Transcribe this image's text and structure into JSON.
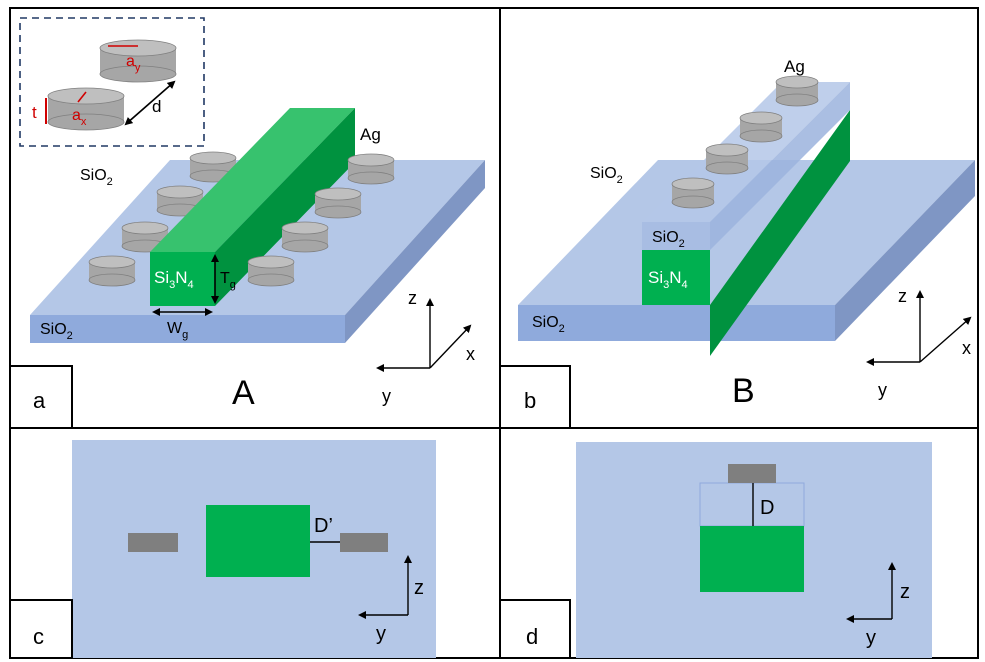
{
  "panels": {
    "a": {
      "letter": "a",
      "title": "A",
      "inset": {
        "ay": "a",
        "ay_sub": "y",
        "ax": "a",
        "ax_sub": "x",
        "t": "t",
        "d": "d"
      },
      "ag": "Ag",
      "sio2_top": "SiO",
      "sio2_top_sub": "2",
      "sio2_front": "SiO",
      "sio2_front_sub": "2",
      "si3n4_a": "Si",
      "si3n4_b": "3",
      "si3n4_c": "N",
      "si3n4_d": "4",
      "tg": "T",
      "tg_sub": "g",
      "wg": "W",
      "wg_sub": "g",
      "axes": {
        "z": "z",
        "x": "x",
        "y": "y"
      }
    },
    "b": {
      "letter": "b",
      "title": "B",
      "ag": "Ag",
      "sio2_top": "SiO",
      "sio2_top_sub": "2",
      "sio2_cap": "SiO",
      "sio2_cap_sub": "2",
      "sio2_front": "SiO",
      "sio2_front_sub": "2",
      "si3n4_a": "Si",
      "si3n4_b": "3",
      "si3n4_c": "N",
      "si3n4_d": "4",
      "axes": {
        "z": "z",
        "x": "x",
        "y": "y"
      }
    },
    "c": {
      "letter": "c",
      "gap": "D’",
      "axes": {
        "z": "z",
        "y": "y"
      }
    },
    "d": {
      "letter": "d",
      "gap": "D",
      "axes": {
        "z": "z",
        "y": "y"
      }
    }
  },
  "colors": {
    "substrate_top": "#b4c7e7",
    "substrate_front": "#8faadc",
    "substrate_side": "#7f96c4",
    "waveguide_front": "#00b050",
    "waveguide_top": "#37c26e",
    "waveguide_side": "#00923f",
    "disk": "#a6a6a6",
    "disk_top": "#bfbfbf",
    "label_red": "#d00000"
  }
}
